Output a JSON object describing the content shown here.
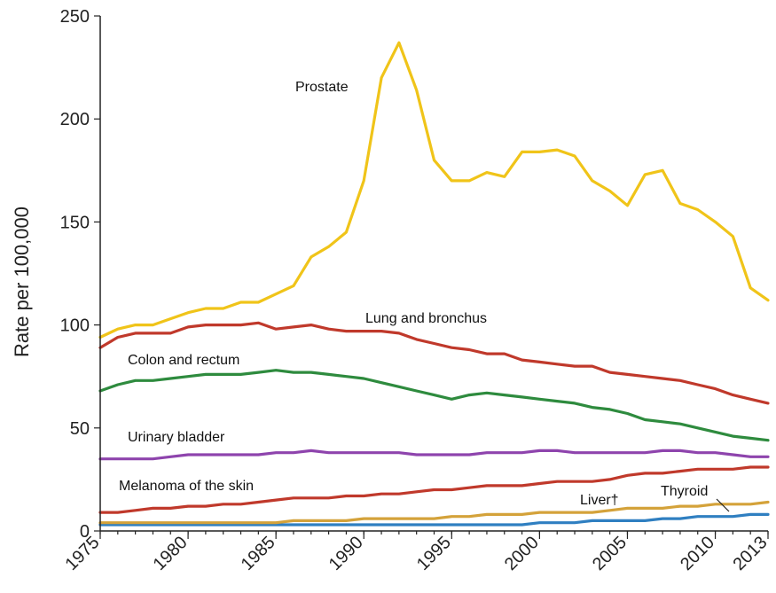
{
  "chart_data": {
    "type": "line",
    "title": "",
    "xlabel": "",
    "ylabel": "Rate per 100,000",
    "xlim": [
      1975,
      2013
    ],
    "ylim": [
      0,
      250
    ],
    "xticks": [
      1975,
      1980,
      1985,
      1990,
      1995,
      2000,
      2005,
      2010,
      2013
    ],
    "yticks": [
      0,
      50,
      100,
      150,
      200,
      250
    ],
    "grid": false,
    "legend": "none",
    "x": [
      1975,
      1976,
      1977,
      1978,
      1979,
      1980,
      1981,
      1982,
      1983,
      1984,
      1985,
      1986,
      1987,
      1988,
      1989,
      1990,
      1991,
      1992,
      1993,
      1994,
      1995,
      1996,
      1997,
      1998,
      1999,
      2000,
      2001,
      2002,
      2003,
      2004,
      2005,
      2006,
      2007,
      2008,
      2009,
      2010,
      2011,
      2012,
      2013
    ],
    "series": [
      {
        "name": "Prostate",
        "color": "#f0c419",
        "values": [
          94,
          98,
          100,
          100,
          103,
          106,
          108,
          108,
          111,
          111,
          115,
          119,
          133,
          138,
          145,
          170,
          220,
          237,
          214,
          180,
          170,
          170,
          174,
          172,
          184,
          184,
          185,
          182,
          170,
          165,
          158,
          173,
          175,
          159,
          156,
          150,
          143,
          118,
          112
        ]
      },
      {
        "name": "Lung and bronchus",
        "color": "#c0392b",
        "values": [
          89,
          94,
          96,
          96,
          96,
          99,
          100,
          100,
          100,
          101,
          98,
          99,
          100,
          98,
          97,
          97,
          97,
          96,
          93,
          91,
          89,
          88,
          86,
          86,
          83,
          82,
          81,
          80,
          80,
          77,
          76,
          75,
          74,
          73,
          71,
          69,
          66,
          64,
          62
        ]
      },
      {
        "name": "Colon and rectum",
        "color": "#2e8b3e",
        "values": [
          68,
          71,
          73,
          73,
          74,
          75,
          76,
          76,
          76,
          77,
          78,
          77,
          77,
          76,
          75,
          74,
          72,
          70,
          68,
          66,
          64,
          66,
          67,
          66,
          65,
          64,
          63,
          62,
          60,
          59,
          57,
          54,
          53,
          52,
          50,
          48,
          46,
          45,
          44
        ]
      },
      {
        "name": "Urinary bladder",
        "color": "#8e44ad",
        "values": [
          35,
          35,
          35,
          35,
          36,
          37,
          37,
          37,
          37,
          37,
          38,
          38,
          39,
          38,
          38,
          38,
          38,
          38,
          37,
          37,
          37,
          37,
          38,
          38,
          38,
          39,
          39,
          38,
          38,
          38,
          38,
          38,
          39,
          39,
          38,
          38,
          37,
          36,
          36
        ]
      },
      {
        "name": "Melanoma of the skin",
        "color": "#c0392b",
        "values": [
          9,
          9,
          10,
          11,
          11,
          12,
          12,
          13,
          13,
          14,
          15,
          16,
          16,
          16,
          17,
          17,
          18,
          18,
          19,
          20,
          20,
          21,
          22,
          22,
          22,
          23,
          24,
          24,
          24,
          25,
          27,
          28,
          28,
          29,
          30,
          30,
          30,
          31,
          31
        ]
      },
      {
        "name": "Liver†",
        "color": "#d4a23a",
        "values": [
          4,
          4,
          4,
          4,
          4,
          4,
          4,
          4,
          4,
          4,
          4,
          5,
          5,
          5,
          5,
          6,
          6,
          6,
          6,
          6,
          7,
          7,
          8,
          8,
          8,
          9,
          9,
          9,
          9,
          10,
          11,
          11,
          11,
          12,
          12,
          13,
          13,
          13,
          14
        ]
      },
      {
        "name": "Thyroid",
        "color": "#2f7fc1",
        "values": [
          3,
          3,
          3,
          3,
          3,
          3,
          3,
          3,
          3,
          3,
          3,
          3,
          3,
          3,
          3,
          3,
          3,
          3,
          3,
          3,
          3,
          3,
          3,
          3,
          3,
          4,
          4,
          4,
          5,
          5,
          5,
          5,
          6,
          6,
          7,
          7,
          7,
          8,
          8
        ]
      }
    ],
    "annotations": [
      {
        "text": "Prostate",
        "series": 0
      },
      {
        "text": "Lung and bronchus",
        "series": 1
      },
      {
        "text": "Colon and rectum",
        "series": 2
      },
      {
        "text": "Urinary bladder",
        "series": 3
      },
      {
        "text": "Melanoma of the skin",
        "series": 4
      },
      {
        "text": "Liver†",
        "series": 5
      },
      {
        "text": "Thyroid",
        "series": 6
      }
    ]
  }
}
